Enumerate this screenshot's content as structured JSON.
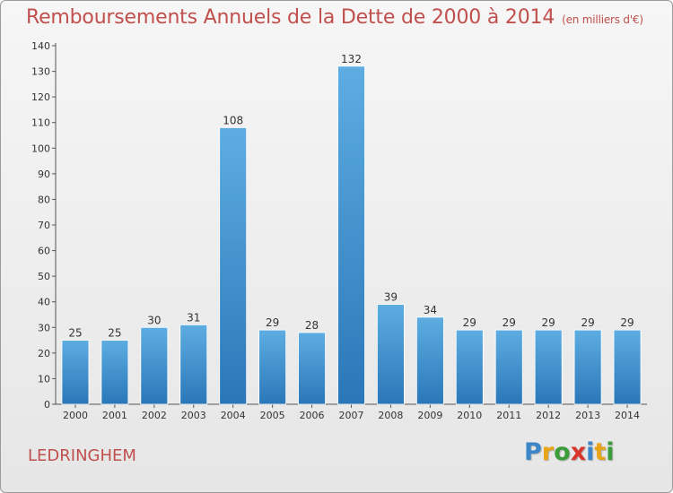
{
  "header": {
    "title": "Remboursements Annuels de la Dette de 2000 à 2014",
    "unit": "(en milliers d'€)"
  },
  "footer": {
    "town": "LEDRINGHEM",
    "logo": {
      "letters": [
        "P",
        "r",
        "o",
        "x",
        "i",
        "t",
        "i"
      ],
      "colors": [
        "#3a86c8",
        "#e8a317",
        "#3a9d3a",
        "#d9342b",
        "#3a86c8",
        "#e8a317",
        "#3a9d3a"
      ]
    }
  },
  "colors": {
    "bar_top": "#5dade2",
    "bar_bottom": "#2a77b8",
    "title": "#c0504d"
  },
  "chart_data": {
    "type": "bar",
    "title": "Remboursements Annuels de la Dette de 2000 à 2014",
    "xlabel": "",
    "ylabel": "",
    "categories": [
      "2000",
      "2001",
      "2002",
      "2003",
      "2004",
      "2005",
      "2006",
      "2007",
      "2008",
      "2009",
      "2010",
      "2011",
      "2012",
      "2013",
      "2014"
    ],
    "values": [
      25,
      25,
      30,
      31,
      108,
      29,
      28,
      132,
      39,
      34,
      29,
      29,
      29,
      29,
      29
    ],
    "ylim": [
      0,
      140
    ],
    "yticks": [
      0,
      10,
      20,
      30,
      40,
      50,
      60,
      70,
      80,
      90,
      100,
      110,
      120,
      130,
      140
    ],
    "grid": false,
    "legend": "none"
  }
}
